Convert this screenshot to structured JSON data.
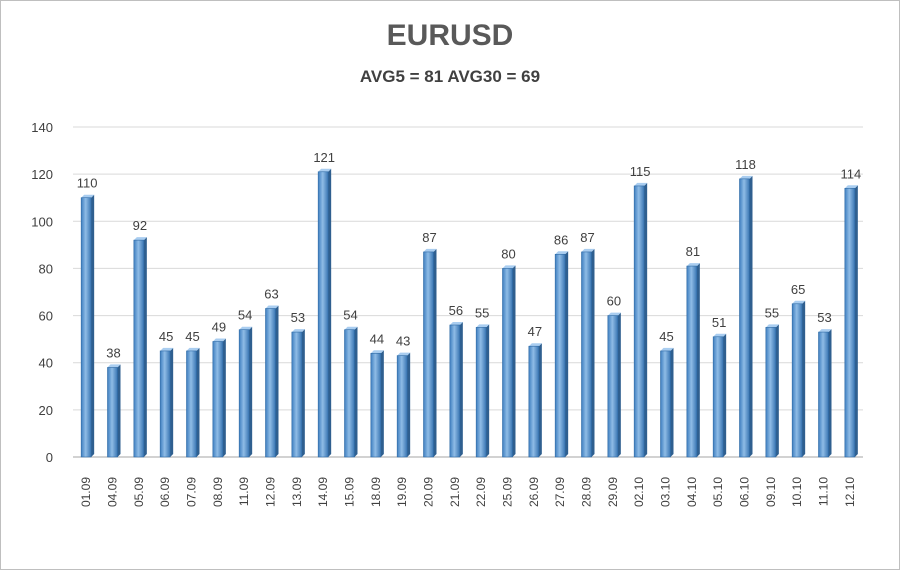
{
  "chart_data": {
    "type": "bar",
    "title": "EURUSD",
    "subtitle": "AVG5 = 81 AVG30 = 69",
    "xlabel": "",
    "ylabel": "",
    "ylim": [
      0,
      140
    ],
    "yticks": [
      0,
      20,
      40,
      60,
      80,
      100,
      120,
      140
    ],
    "grid": true,
    "legend": "none",
    "bar_color": "#5b9bd5",
    "categories": [
      "01.09",
      "04.09",
      "05.09",
      "06.09",
      "07.09",
      "08.09",
      "11.09",
      "12.09",
      "13.09",
      "14.09",
      "15.09",
      "18.09",
      "19.09",
      "20.09",
      "21.09",
      "22.09",
      "25.09",
      "26.09",
      "27.09",
      "28.09",
      "29.09",
      "02.10",
      "03.10",
      "04.10",
      "05.10",
      "06.10",
      "09.10",
      "10.10",
      "11.10",
      "12.10"
    ],
    "values": [
      110,
      38,
      92,
      45,
      45,
      49,
      54,
      63,
      53,
      121,
      54,
      44,
      43,
      87,
      56,
      55,
      80,
      47,
      86,
      87,
      60,
      115,
      45,
      81,
      51,
      118,
      55,
      65,
      53,
      114
    ]
  }
}
